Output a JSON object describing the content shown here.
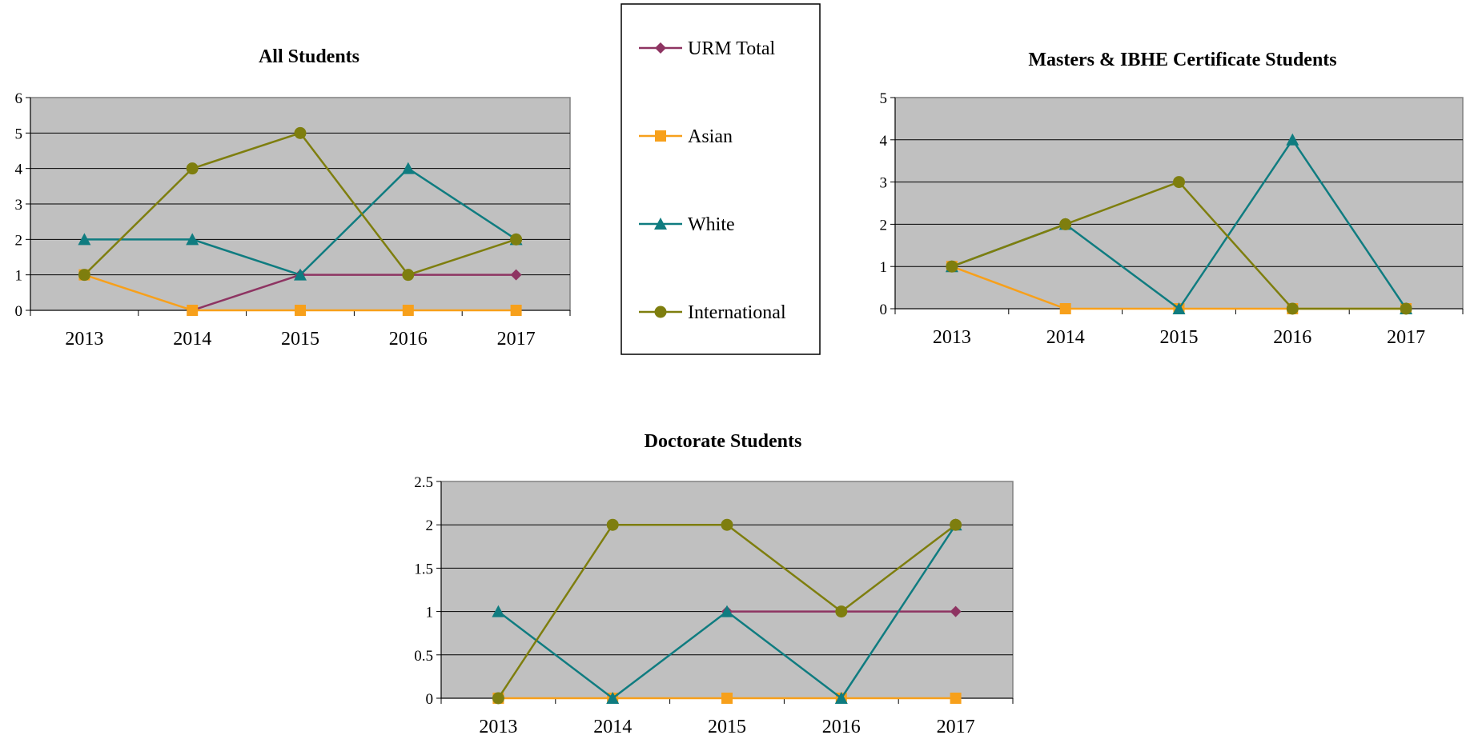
{
  "legend": {
    "items": [
      {
        "label": "URM Total",
        "marker": "diamond",
        "color": "#8E3462"
      },
      {
        "label": "Asian",
        "marker": "square",
        "color": "#F7A01B"
      },
      {
        "label": "White",
        "marker": "triangle",
        "color": "#0F7C80"
      },
      {
        "label": "International",
        "marker": "circle",
        "color": "#7E7E0E"
      }
    ]
  },
  "chart_data": [
    {
      "type": "line",
      "title": "All Students",
      "categories": [
        "2013",
        "2014",
        "2015",
        "2016",
        "2017"
      ],
      "ylim": [
        0,
        6
      ],
      "yticks": [
        "0",
        "1",
        "2",
        "3",
        "4",
        "5",
        "6"
      ],
      "grid": true,
      "plot_background": "#C0C0C0",
      "series": [
        {
          "name": "URM Total",
          "values": [
            null,
            0,
            1,
            1,
            1
          ]
        },
        {
          "name": "Asian",
          "values": [
            1,
            0,
            0,
            0,
            0
          ]
        },
        {
          "name": "White",
          "values": [
            2,
            2,
            1,
            4,
            2
          ]
        },
        {
          "name": "International",
          "values": [
            1,
            4,
            5,
            1,
            2
          ]
        }
      ]
    },
    {
      "type": "line",
      "title": "Masters & IBHE Certificate Students",
      "categories": [
        "2013",
        "2014",
        "2015",
        "2016",
        "2017"
      ],
      "ylim": [
        0,
        5
      ],
      "yticks": [
        "0",
        "1",
        "2",
        "3",
        "4",
        "5"
      ],
      "grid": true,
      "plot_background": "#C0C0C0",
      "series": [
        {
          "name": "URM Total",
          "values": [
            null,
            null,
            null,
            null,
            null
          ]
        },
        {
          "name": "Asian",
          "values": [
            1,
            0,
            0,
            0,
            0
          ]
        },
        {
          "name": "White",
          "values": [
            1,
            2,
            0,
            4,
            0
          ]
        },
        {
          "name": "International",
          "values": [
            1,
            2,
            3,
            0,
            0
          ]
        }
      ]
    },
    {
      "type": "line",
      "title": "Doctorate Students",
      "categories": [
        "2013",
        "2014",
        "2015",
        "2016",
        "2017"
      ],
      "ylim": [
        0,
        2.5
      ],
      "yticks": [
        "0",
        "0.5",
        "1",
        "1.5",
        "2",
        "2.5"
      ],
      "grid": true,
      "plot_background": "#C0C0C0",
      "series": [
        {
          "name": "URM Total",
          "values": [
            null,
            null,
            1,
            1,
            1
          ]
        },
        {
          "name": "Asian",
          "values": [
            0,
            0,
            0,
            0,
            0
          ]
        },
        {
          "name": "White",
          "values": [
            1,
            0,
            1,
            0,
            2
          ]
        },
        {
          "name": "International",
          "values": [
            0,
            2,
            2,
            1,
            2
          ]
        }
      ]
    }
  ]
}
